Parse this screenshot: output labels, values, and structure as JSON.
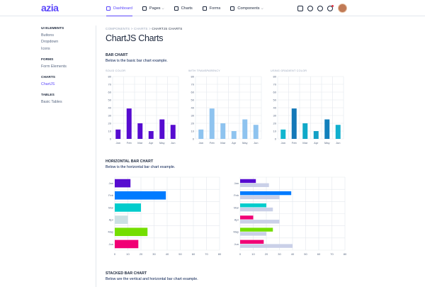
{
  "header": {
    "logo": "azia",
    "nav": [
      {
        "label": "Dashboard",
        "icon": "dashboard-icon",
        "active": true,
        "dropdown": false
      },
      {
        "label": "Pages",
        "icon": "document-icon",
        "active": false,
        "dropdown": true
      },
      {
        "label": "Charts",
        "icon": "chart-icon",
        "active": false,
        "dropdown": false
      },
      {
        "label": "Forms",
        "icon": "forms-icon",
        "active": false,
        "dropdown": false
      },
      {
        "label": "Components",
        "icon": "components-icon",
        "active": false,
        "dropdown": true
      }
    ],
    "icons": [
      "file-icon",
      "search-icon",
      "chat-icon",
      "bell-icon"
    ]
  },
  "sidebar": {
    "groups": [
      {
        "title": "UI Elements",
        "items": [
          "Buttons",
          "Dropdown",
          "Icons"
        ]
      },
      {
        "title": "Forms",
        "items": [
          "Form Elements"
        ]
      },
      {
        "title": "Charts",
        "items": [
          "ChartJS"
        ]
      },
      {
        "title": "Tables",
        "items": [
          "Basic Tables"
        ]
      }
    ],
    "active_item": "ChartJS"
  },
  "breadcrumb": {
    "items": [
      "COMPONENTS",
      "CHARTS"
    ],
    "current": "CHARTJS CHARTS",
    "separator": ">"
  },
  "page_title": "ChartJS Charts",
  "sections": {
    "bar": {
      "title": "BAR CHART",
      "desc": "Below is the basic bar chart example."
    },
    "hbar": {
      "title": "HORIZONTAL BAR CHART",
      "desc": "Below is the horizontal bar chart example."
    },
    "stacked": {
      "title": "STACKED BAR CHART",
      "desc": "Below are the vertical and horizontal bar chart example."
    }
  },
  "colors": {
    "accent": "#5b47fb",
    "border": "#e3e7ed"
  },
  "chart_data": [
    {
      "type": "bar",
      "title": "SOLID COLOR",
      "categories": [
        "Jan",
        "Feb",
        "Mar",
        "Apr",
        "May",
        "Jun"
      ],
      "values": [
        12,
        39,
        20,
        10,
        25,
        18
      ],
      "ylim": [
        0,
        80
      ],
      "yticks": [
        0,
        10,
        20,
        30,
        40,
        50,
        60,
        70,
        80
      ],
      "color": "#560bd0",
      "grid": true
    },
    {
      "type": "bar",
      "title": "WITH TRANSPARENCY",
      "categories": [
        "Jan",
        "Feb",
        "Mar",
        "Apr",
        "May",
        "Jun"
      ],
      "values": [
        12,
        39,
        20,
        10,
        25,
        18
      ],
      "ylim": [
        0,
        80
      ],
      "yticks": [
        0,
        10,
        20,
        30,
        40,
        50,
        60,
        70,
        80
      ],
      "color": "#8ec3ef",
      "grid": true
    },
    {
      "type": "bar",
      "title": "USING GRADIENT COLOR",
      "categories": [
        "Jan",
        "Feb",
        "Mar",
        "Apr",
        "May",
        "Jun"
      ],
      "values": [
        12,
        39,
        20,
        10,
        25,
        18
      ],
      "ylim": [
        0,
        80
      ],
      "yticks": [
        0,
        10,
        20,
        30,
        40,
        50,
        60,
        70,
        80
      ],
      "color": "#0fa4c9",
      "colors": [
        "#11b6cf",
        "#1378b8",
        "#10a9c8",
        "#13a0c6",
        "#127fbb",
        "#11afce"
      ],
      "grid": true
    },
    {
      "type": "bar",
      "orientation": "horizontal",
      "categories": [
        "Jan",
        "Feb",
        "Mar",
        "Apr",
        "May",
        "Jun"
      ],
      "values": [
        12,
        39,
        20,
        10,
        25,
        18
      ],
      "xlim": [
        0,
        80
      ],
      "xticks": [
        0,
        10,
        20,
        30,
        40,
        50,
        60,
        70,
        80
      ],
      "colors": [
        "#560bd0",
        "#007bff",
        "#00cccc",
        "#cbe0e3",
        "#74de00",
        "#f10075"
      ],
      "grid": true
    },
    {
      "type": "bar",
      "orientation": "horizontal",
      "categories": [
        "Jan",
        "Feb",
        "Mar",
        "Apr",
        "May",
        "Jun"
      ],
      "series": [
        {
          "values": [
            12,
            39,
            20,
            10,
            25,
            18
          ],
          "colors": [
            "#560bd0",
            "#007bff",
            "#00cccc",
            "#f10075",
            "#74de00",
            "#f10075"
          ]
        },
        {
          "values": [
            22,
            30,
            25,
            30,
            20,
            40
          ],
          "colors": [
            "#cad0e8",
            "#cad0e8",
            "#cad0e8",
            "#cad0e8",
            "#cad0e8",
            "#cad0e8"
          ]
        }
      ],
      "xlim": [
        0,
        80
      ],
      "xticks": [
        0,
        10,
        20,
        30,
        40,
        50,
        60,
        70,
        80
      ],
      "grid": true
    }
  ]
}
